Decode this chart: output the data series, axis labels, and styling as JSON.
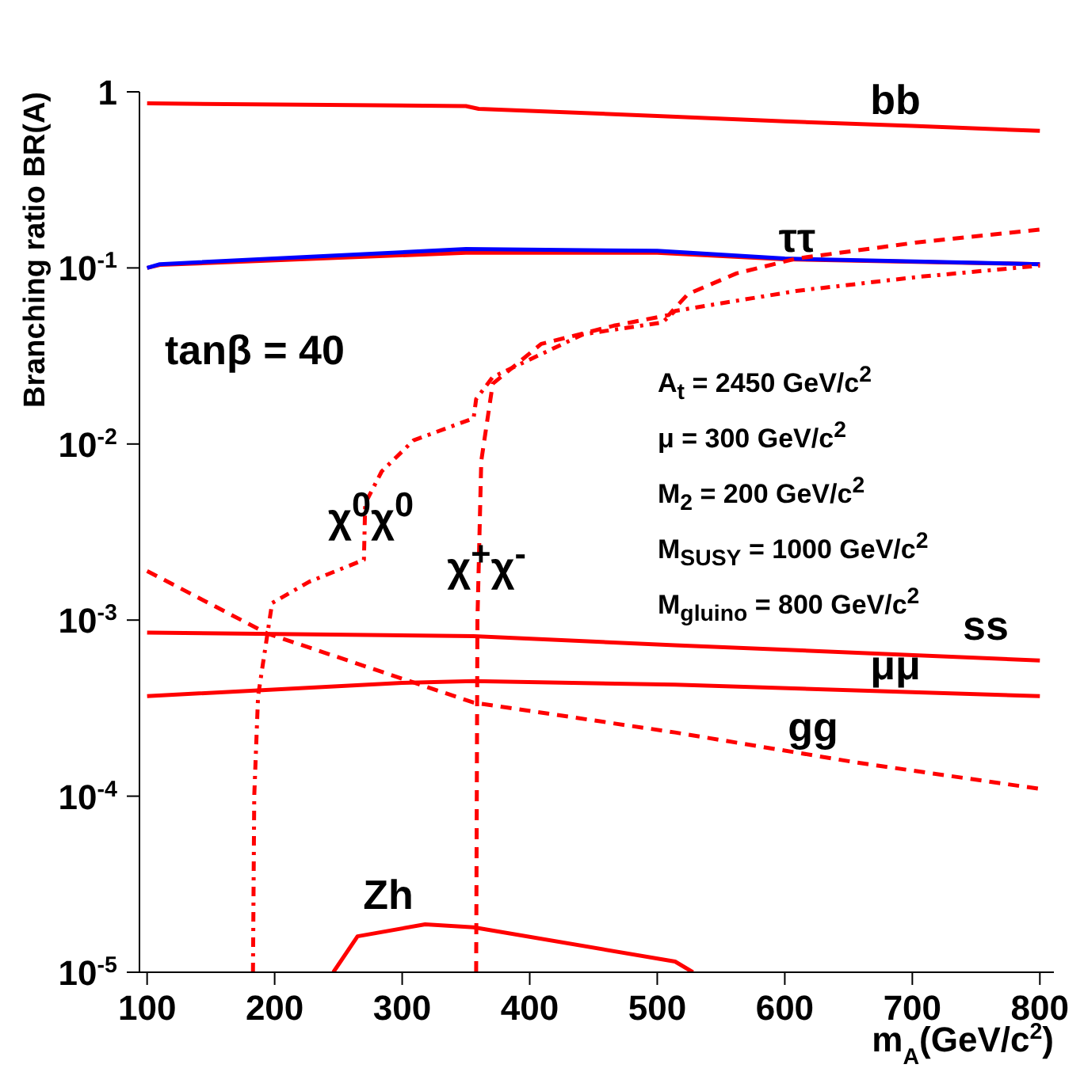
{
  "chart_data": {
    "type": "line",
    "xlabel": "m$_{A}$(GeV/c$^{2}$)",
    "ylabel": "Branching ratio BR(A)",
    "log": "y",
    "marker": "none",
    "xlim": [
      94,
      811
    ],
    "xticks": [
      100,
      200,
      300,
      400,
      500,
      600,
      700,
      800
    ],
    "ylim": [
      1e-05,
      1
    ],
    "yticks": [
      {
        "value": 1e-05,
        "label": "10$^{-5}$"
      },
      {
        "value": 0.0001,
        "label": "10$^{-4}$"
      },
      {
        "value": 0.001,
        "label": "10$^{-3}$"
      },
      {
        "value": 0.01,
        "label": "10$^{-2}$"
      },
      {
        "value": 0.1,
        "label": "10$^{-1}$"
      },
      1
    ],
    "series": [
      {
        "color": "#ff0000",
        "line_style": "solid",
        "x": [
          100,
          350,
          360,
          500,
          600,
          700,
          800
        ],
        "values": [
          0.86,
          0.83,
          0.8,
          0.73,
          0.68,
          0.64,
          0.6
        ]
      },
      {
        "color": "#ff0000",
        "line_style": "solid",
        "x": [
          100,
          110,
          350,
          500,
          600,
          800
        ],
        "values": [
          0.1,
          0.104,
          0.122,
          0.122,
          0.112,
          0.105
        ]
      },
      {
        "color": "#0000ff",
        "line_style": "solid",
        "x": [
          100,
          110,
          350,
          500,
          600,
          800
        ],
        "values": [
          0.1,
          0.105,
          0.128,
          0.125,
          0.113,
          0.105
        ]
      },
      {
        "color": "#ff0000",
        "line_style": "dashed",
        "x": [
          358,
          359,
          362,
          371,
          409,
          466,
          509,
          524,
          562,
          609,
          705,
          800
        ],
        "values": [
          1e-05,
          0.001,
          0.008,
          0.022,
          0.037,
          0.047,
          0.054,
          0.071,
          0.093,
          0.113,
          0.14,
          0.165
        ]
      },
      {
        "color": "#ff0000",
        "line_style": "dotted",
        "x": [
          183,
          184,
          187,
          198,
          227,
          270,
          271,
          284,
          309,
          356,
          358,
          371,
          442,
          504,
          514,
          609,
          705,
          800
        ],
        "values": [
          1e-05,
          0.0001,
          0.00037,
          0.00125,
          0.00165,
          0.0022,
          0.0046,
          0.007,
          0.0105,
          0.014,
          0.018,
          0.024,
          0.042,
          0.049,
          0.057,
          0.074,
          0.089,
          0.103
        ]
      },
      {
        "color": "#ff0000",
        "line_style": "dashed",
        "x": [
          100,
          194,
          356,
          514,
          657,
          800
        ],
        "values": [
          0.0019,
          0.00084,
          0.00034,
          0.00023,
          0.000155,
          0.00011
        ]
      },
      {
        "color": "#ff0000",
        "line_style": "solid",
        "x": [
          100,
          356,
          514,
          800
        ],
        "values": [
          0.00085,
          0.00081,
          0.00072,
          0.00059
        ]
      },
      {
        "color": "#ff0000",
        "line_style": "solid",
        "x": [
          100,
          300,
          356,
          514,
          700,
          800
        ],
        "values": [
          0.00037,
          0.00044,
          0.00045,
          0.00043,
          0.00039,
          0.00037
        ]
      },
      {
        "color": "#ff0000",
        "line_style": "solid",
        "x": [
          246,
          265,
          318,
          356,
          514,
          528
        ],
        "values": [
          1e-05,
          1.6e-05,
          1.87e-05,
          1.8e-05,
          1.15e-05,
          1e-05
        ]
      }
    ],
    "annotations": [
      "bb",
      "ττ",
      "tanβ = 40",
      "A$_{t}$ = 2450 GeV/c$^{2}$",
      "μ = 300 GeV/c$^{2}$",
      "M$_{2}$ = 200 GeV/c$^{2}$",
      "M$_{SUSY}$ = 1000 GeV/c$^{2}$",
      "M$_{gluino}$ = 800 GeV/c$^{2}$",
      "χ$^{0}$χ$^{0}$",
      "χ$^{+}$χ$^{-}$",
      "ss",
      "μμ",
      "gg",
      "Zh"
    ]
  }
}
